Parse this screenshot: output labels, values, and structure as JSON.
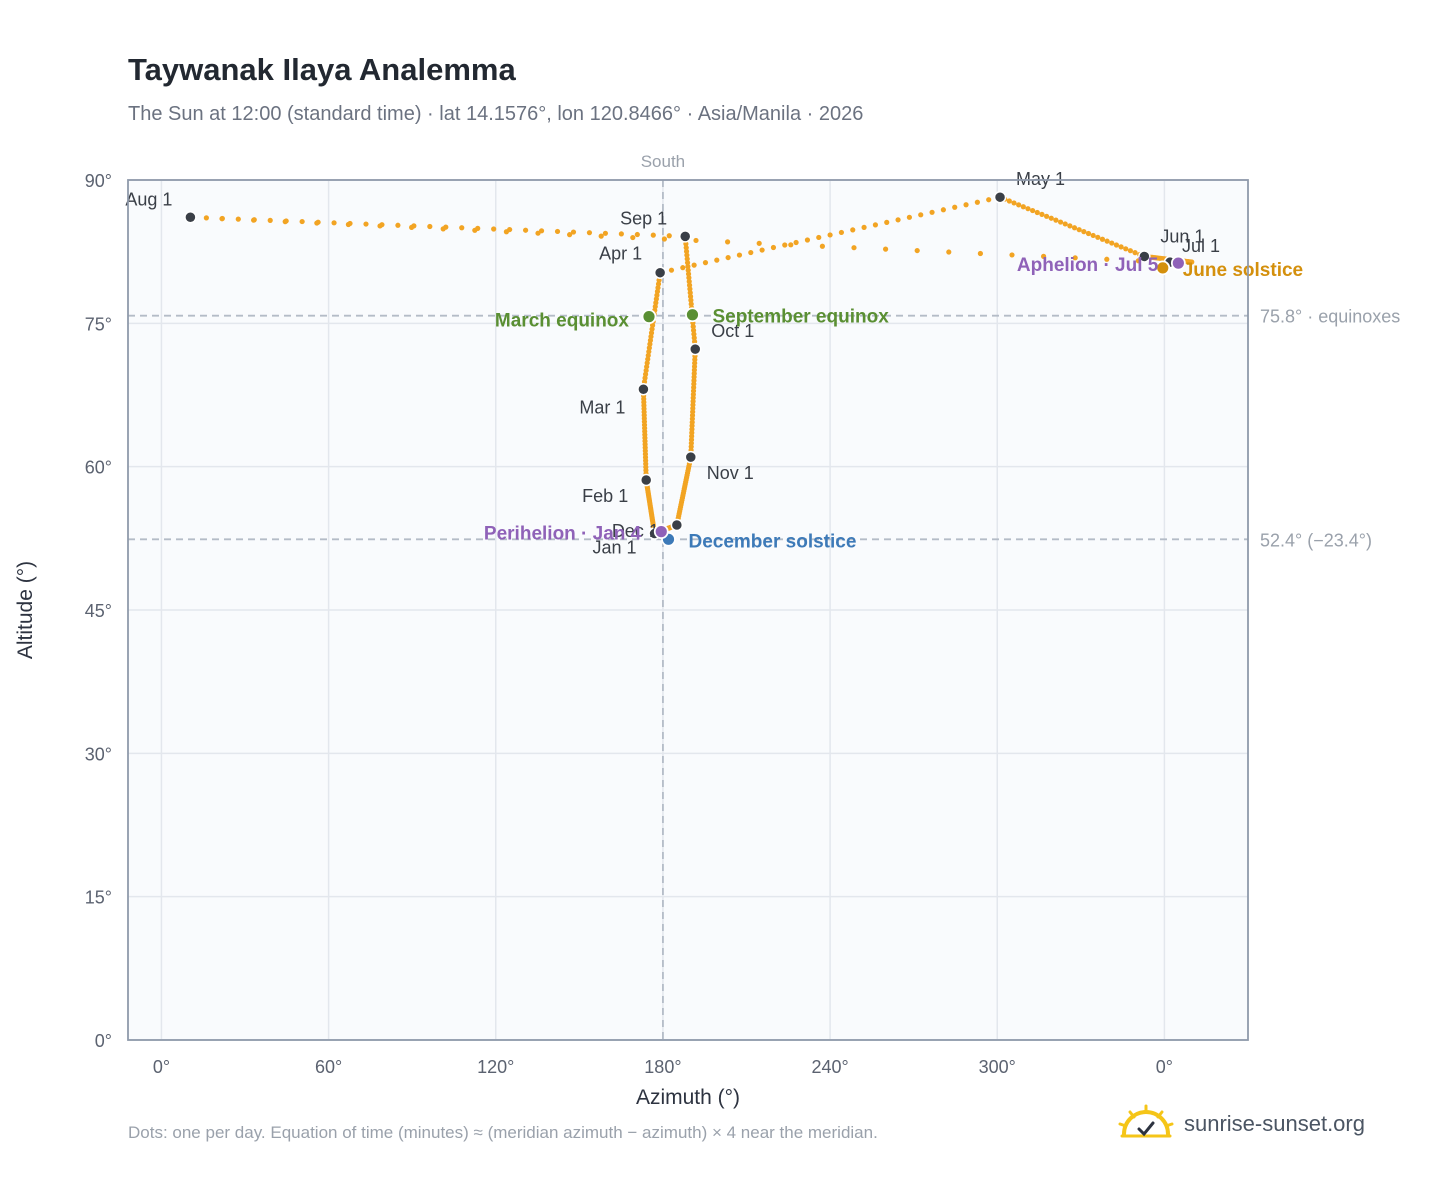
{
  "title": "Taywanak Ilaya Analemma",
  "subtitle": "The Sun at 12:00 (standard time) · lat 14.1576°, lon 120.8466° · Asia/Manila · 2026",
  "footnote": "Dots: one per day. Equation of time (minutes) ≈ (meridian azimuth − azimuth) × 4 near the meridian.",
  "brand": "sunrise-sunset.org",
  "chart_data": {
    "type": "scatter",
    "title": "Taywanak Ilaya Analemma",
    "xlabel": "Azimuth (°)",
    "ylabel": "Altitude (°)",
    "xlim": [
      -6,
      195
    ],
    "ylim": [
      0,
      90
    ],
    "x_ticks": [
      {
        "value": 0,
        "label": "0°"
      },
      {
        "value": 30,
        "label": "60°"
      },
      {
        "value": 60,
        "label": "120°"
      },
      {
        "value": 90,
        "label": "180°"
      },
      {
        "value": 120,
        "label": "240°"
      },
      {
        "value": 150,
        "label": "300°"
      },
      {
        "value": 180,
        "label": "0°"
      }
    ],
    "y_ticks": [
      {
        "value": 0,
        "label": "0°"
      },
      {
        "value": 15,
        "label": "15°"
      },
      {
        "value": 30,
        "label": "30°"
      },
      {
        "value": 45,
        "label": "45°"
      },
      {
        "value": 60,
        "label": "60°"
      },
      {
        "value": 75,
        "label": "75°"
      },
      {
        "value": 90,
        "label": "90°"
      }
    ],
    "grid": true,
    "reference_lines": {
      "meridian": {
        "x": 90,
        "label": "South"
      },
      "equinox": {
        "y": 75.8,
        "label": "75.8° · equinoxes"
      },
      "solstice": {
        "y": 52.4,
        "label": "52.4° (−23.4°)"
      }
    },
    "month_markers": [
      {
        "label": "Jan 1",
        "x": 88.5,
        "y": 53.0
      },
      {
        "label": "Feb 1",
        "x": 87.0,
        "y": 58.6
      },
      {
        "label": "Mar 1",
        "x": 86.5,
        "y": 68.1
      },
      {
        "label": "Apr 1",
        "x": 89.5,
        "y": 80.3
      },
      {
        "label": "May 1",
        "x": 150.5,
        "y": 88.2
      },
      {
        "label": "Jun 1",
        "x": 176.4,
        "y": 82.0
      },
      {
        "label": "Jul 1",
        "x": 181.0,
        "y": 81.4
      },
      {
        "label": "Aug 1",
        "x": 5.2,
        "y": 86.1
      },
      {
        "label": "Sep 1",
        "x": 94.0,
        "y": 84.1
      },
      {
        "label": "Oct 1",
        "x": 95.8,
        "y": 72.3
      },
      {
        "label": "Nov 1",
        "x": 95.0,
        "y": 61.0
      },
      {
        "label": "Dec 1",
        "x": 92.5,
        "y": 53.9
      }
    ],
    "events": [
      {
        "label": "March equinox",
        "x": 87.5,
        "y": 75.7,
        "color": "#5a8f33"
      },
      {
        "label": "September equinox",
        "x": 95.3,
        "y": 75.9,
        "color": "#5a8f33"
      },
      {
        "label": "June solstice",
        "x": 179.7,
        "y": 80.8,
        "color": "#d4900d"
      },
      {
        "label": "December solstice",
        "x": 91.0,
        "y": 52.4,
        "color": "#3d7ab8"
      },
      {
        "label": "Perihelion · Jan 4",
        "x": 89.7,
        "y": 53.2,
        "color": "#8f62b8"
      },
      {
        "label": "Aphelion · Jul 5",
        "x": 182.5,
        "y": 81.3,
        "color": "#8f62b8"
      }
    ]
  },
  "colors": {
    "path": "#f2a423",
    "marker": "#3a3f47",
    "plot_bg": "#f9fbfd",
    "grid": "#e3e7ed",
    "frame": "#8f9aab",
    "ref": "#b4bcc7"
  }
}
